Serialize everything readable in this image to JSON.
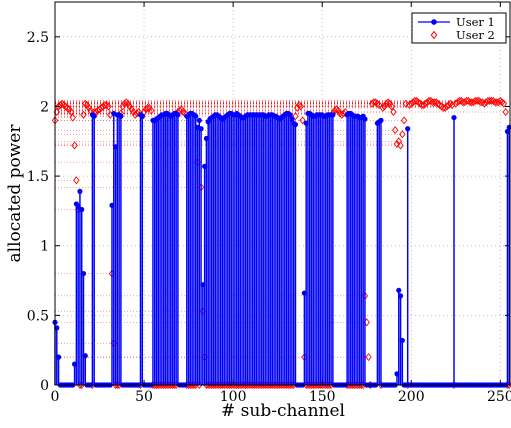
{
  "chart_data": {
    "type": "line",
    "xlabel": "# sub-channel",
    "ylabel": "allocated power",
    "xlim": [
      0,
      256
    ],
    "ylim": [
      0,
      2.75
    ],
    "x_ticks": [
      0,
      50,
      100,
      150,
      200,
      250
    ],
    "x_tick_labels": [
      "0",
      "50",
      "100",
      "150",
      "200",
      "250"
    ],
    "y_ticks": [
      0,
      0.5,
      1,
      1.5,
      2,
      2.5
    ],
    "y_tick_labels": [
      "0",
      "0.5",
      "1",
      "1.5",
      "2",
      "2.5"
    ],
    "grid": true,
    "legend_position": "top-right",
    "series": [
      {
        "name": "User 1",
        "color": "#0000ff",
        "marker": "filled-circle",
        "style": "stem",
        "segments": [
          [
            0,
            0.45
          ],
          [
            1,
            0.41
          ],
          [
            2,
            0.2
          ],
          [
            11,
            0.15
          ],
          [
            12,
            1.3
          ],
          [
            13,
            1.28
          ],
          [
            14,
            1.39
          ],
          [
            15,
            1.26
          ],
          [
            16,
            0.8
          ],
          [
            17,
            0.21
          ],
          [
            21,
            1.94
          ],
          [
            22,
            1.93
          ],
          [
            32,
            1.29
          ],
          [
            33,
            1.95
          ],
          [
            34,
            1.71
          ],
          [
            35,
            1.94
          ],
          [
            36,
            1.94
          ],
          [
            37,
            1.93
          ],
          [
            48,
            1.94
          ],
          [
            49,
            1.93
          ],
          [
            55,
            1.9
          ],
          [
            56,
            1.9
          ],
          [
            57,
            1.91
          ],
          [
            58,
            1.92
          ],
          [
            59,
            1.93
          ],
          [
            60,
            1.94
          ],
          [
            61,
            1.94
          ],
          [
            62,
            1.95
          ],
          [
            63,
            1.95
          ],
          [
            64,
            1.94
          ],
          [
            65,
            1.93
          ],
          [
            66,
            1.94
          ],
          [
            67,
            1.95
          ],
          [
            68,
            1.95
          ],
          [
            69,
            1.94
          ],
          [
            74,
            1.93
          ],
          [
            75,
            1.94
          ],
          [
            76,
            1.95
          ],
          [
            77,
            1.95
          ],
          [
            78,
            1.94
          ],
          [
            79,
            1.93
          ],
          [
            80,
            1.85
          ],
          [
            81,
            1.9
          ],
          [
            82,
            1.84
          ],
          [
            83,
            0.72
          ],
          [
            84,
            1.57
          ],
          [
            85,
            1.77
          ],
          [
            86,
            1.89
          ],
          [
            87,
            1.91
          ],
          [
            88,
            1.92
          ],
          [
            89,
            1.93
          ],
          [
            90,
            1.94
          ],
          [
            91,
            1.94
          ],
          [
            92,
            1.93
          ],
          [
            93,
            1.92
          ],
          [
            94,
            1.91
          ],
          [
            95,
            1.92
          ],
          [
            96,
            1.93
          ],
          [
            97,
            1.94
          ],
          [
            98,
            1.95
          ],
          [
            99,
            1.95
          ],
          [
            100,
            1.94
          ],
          [
            101,
            1.94
          ],
          [
            102,
            1.95
          ],
          [
            103,
            1.94
          ],
          [
            104,
            1.93
          ],
          [
            105,
            1.92
          ],
          [
            106,
            1.92
          ],
          [
            107,
            1.93
          ],
          [
            108,
            1.94
          ],
          [
            109,
            1.94
          ],
          [
            110,
            1.94
          ],
          [
            111,
            1.94
          ],
          [
            112,
            1.94
          ],
          [
            113,
            1.94
          ],
          [
            114,
            1.94
          ],
          [
            115,
            1.94
          ],
          [
            116,
            1.94
          ],
          [
            117,
            1.94
          ],
          [
            118,
            1.93
          ],
          [
            119,
            1.93
          ],
          [
            120,
            1.94
          ],
          [
            121,
            1.94
          ],
          [
            122,
            1.94
          ],
          [
            123,
            1.93
          ],
          [
            124,
            1.93
          ],
          [
            125,
            1.92
          ],
          [
            126,
            1.91
          ],
          [
            127,
            1.92
          ],
          [
            128,
            1.93
          ],
          [
            129,
            1.94
          ],
          [
            130,
            1.95
          ],
          [
            131,
            1.95
          ],
          [
            132,
            1.94
          ],
          [
            133,
            1.91
          ],
          [
            134,
            1.88
          ],
          [
            135,
            1.87
          ],
          [
            140,
            0.66
          ],
          [
            141,
            1.88
          ],
          [
            142,
            1.95
          ],
          [
            143,
            1.95
          ],
          [
            144,
            1.94
          ],
          [
            145,
            1.93
          ],
          [
            146,
            1.93
          ],
          [
            147,
            1.94
          ],
          [
            148,
            1.94
          ],
          [
            149,
            1.94
          ],
          [
            150,
            1.94
          ],
          [
            151,
            1.93
          ],
          [
            152,
            1.93
          ],
          [
            153,
            1.94
          ],
          [
            154,
            1.94
          ],
          [
            155,
            1.94
          ],
          [
            156,
            1.94
          ],
          [
            164,
            1.94
          ],
          [
            165,
            1.95
          ],
          [
            166,
            1.95
          ],
          [
            167,
            1.94
          ],
          [
            168,
            1.93
          ],
          [
            169,
            1.93
          ],
          [
            170,
            1.93
          ],
          [
            171,
            1.92
          ],
          [
            172,
            1.92
          ],
          [
            173,
            1.93
          ],
          [
            174,
            1.91
          ],
          [
            181,
            1.88
          ],
          [
            182,
            1.89
          ],
          [
            183,
            1.9
          ],
          [
            192,
            0.08
          ],
          [
            193,
            0.68
          ],
          [
            194,
            0.64
          ],
          [
            195,
            0.32
          ],
          [
            198,
            1.84
          ],
          [
            224,
            1.92
          ],
          [
            254,
            1.82
          ],
          [
            255,
            1.85
          ]
        ]
      },
      {
        "name": "User 2",
        "color": "#ff0000",
        "marker": "open-diamond",
        "style": "stem",
        "segments": [
          [
            0,
            1.9
          ],
          [
            1,
            1.96
          ],
          [
            2,
            2.0
          ],
          [
            3,
            2.01
          ],
          [
            4,
            2.02
          ],
          [
            5,
            2.01
          ],
          [
            6,
            2.0
          ],
          [
            7,
            1.99
          ],
          [
            8,
            1.98
          ],
          [
            9,
            1.96
          ],
          [
            10,
            1.92
          ],
          [
            11,
            1.72
          ],
          [
            12,
            1.47
          ],
          [
            13,
            1.26
          ],
          [
            16,
            1.94
          ],
          [
            17,
            2.02
          ],
          [
            18,
            2.01
          ],
          [
            19,
            1.99
          ],
          [
            20,
            1.97
          ],
          [
            22,
            1.96
          ],
          [
            23,
            1.96
          ],
          [
            24,
            1.97
          ],
          [
            25,
            1.98
          ],
          [
            26,
            1.99
          ],
          [
            27,
            2.0
          ],
          [
            28,
            2.01
          ],
          [
            29,
            2.01
          ],
          [
            30,
            2.0
          ],
          [
            31,
            1.94
          ],
          [
            32,
            0.8
          ],
          [
            33,
            0.3
          ],
          [
            37,
            1.95
          ],
          [
            38,
            2.0
          ],
          [
            39,
            2.02
          ],
          [
            40,
            2.03
          ],
          [
            41,
            2.02
          ],
          [
            42,
            2.0
          ],
          [
            43,
            1.98
          ],
          [
            44,
            1.96
          ],
          [
            45,
            1.94
          ],
          [
            46,
            1.95
          ],
          [
            47,
            1.96
          ],
          [
            49,
            1.93
          ],
          [
            50,
            1.96
          ],
          [
            51,
            1.98
          ],
          [
            52,
            1.99
          ],
          [
            53,
            1.99
          ],
          [
            54,
            1.97
          ],
          [
            69,
            1.96
          ],
          [
            70,
            1.97
          ],
          [
            71,
            1.98
          ],
          [
            72,
            1.96
          ],
          [
            73,
            1.95
          ],
          [
            80,
            1.6
          ],
          [
            82,
            1.42
          ],
          [
            83,
            0.53
          ],
          [
            84,
            0.2
          ],
          [
            135,
            1.93
          ],
          [
            136,
            1.99
          ],
          [
            137,
            2.01
          ],
          [
            138,
            2.0
          ],
          [
            139,
            1.9
          ],
          [
            140,
            0.2
          ],
          [
            156,
            1.95
          ],
          [
            157,
            1.97
          ],
          [
            158,
            1.98
          ],
          [
            159,
            1.97
          ],
          [
            160,
            1.95
          ],
          [
            161,
            1.94
          ],
          [
            162,
            1.95
          ],
          [
            163,
            1.96
          ],
          [
            174,
            0.64
          ],
          [
            175,
            0.45
          ],
          [
            176,
            0.2
          ],
          [
            178,
            2.02
          ],
          [
            179,
            2.03
          ],
          [
            180,
            2.03
          ],
          [
            181,
            2.02
          ],
          [
            182,
            2.01
          ],
          [
            184,
            1.99
          ],
          [
            185,
            2.0
          ],
          [
            186,
            2.02
          ],
          [
            187,
            2.03
          ],
          [
            188,
            2.02
          ],
          [
            189,
            2.0
          ],
          [
            190,
            1.96
          ],
          [
            191,
            1.83
          ],
          [
            192,
            1.73
          ],
          [
            193,
            1.75
          ],
          [
            194,
            1.72
          ],
          [
            195,
            1.8
          ],
          [
            196,
            1.9
          ],
          [
            197,
            2.02
          ],
          [
            199,
            2.01
          ],
          [
            200,
            2.02
          ],
          [
            201,
            2.03
          ],
          [
            202,
            2.04
          ],
          [
            203,
            2.04
          ],
          [
            204,
            2.03
          ],
          [
            205,
            2.02
          ],
          [
            206,
            2.01
          ],
          [
            207,
            2.01
          ],
          [
            208,
            2.02
          ],
          [
            209,
            2.03
          ],
          [
            210,
            2.04
          ],
          [
            211,
            2.04
          ],
          [
            212,
            2.03
          ],
          [
            213,
            2.03
          ],
          [
            214,
            2.03
          ],
          [
            215,
            2.02
          ],
          [
            216,
            2.01
          ],
          [
            217,
            2.0
          ],
          [
            218,
            1.99
          ],
          [
            219,
            1.99
          ],
          [
            220,
            2.0
          ],
          [
            221,
            2.01
          ],
          [
            222,
            2.02
          ],
          [
            223,
            2.01
          ],
          [
            225,
            2.02
          ],
          [
            226,
            2.03
          ],
          [
            227,
            2.04
          ],
          [
            228,
            2.04
          ],
          [
            229,
            2.03
          ],
          [
            230,
            2.03
          ],
          [
            231,
            2.04
          ],
          [
            232,
            2.04
          ],
          [
            233,
            2.03
          ],
          [
            234,
            2.03
          ],
          [
            235,
            2.03
          ],
          [
            236,
            2.04
          ],
          [
            237,
            2.04
          ],
          [
            238,
            2.04
          ],
          [
            239,
            2.03
          ],
          [
            240,
            2.03
          ],
          [
            241,
            2.02
          ],
          [
            242,
            2.03
          ],
          [
            243,
            2.04
          ],
          [
            244,
            2.04
          ],
          [
            245,
            2.04
          ],
          [
            246,
            2.04
          ],
          [
            247,
            2.03
          ],
          [
            248,
            2.03
          ],
          [
            249,
            2.03
          ],
          [
            250,
            2.04
          ],
          [
            251,
            2.03
          ],
          [
            252,
            2.02
          ],
          [
            253,
            1.96
          ]
        ]
      }
    ]
  }
}
